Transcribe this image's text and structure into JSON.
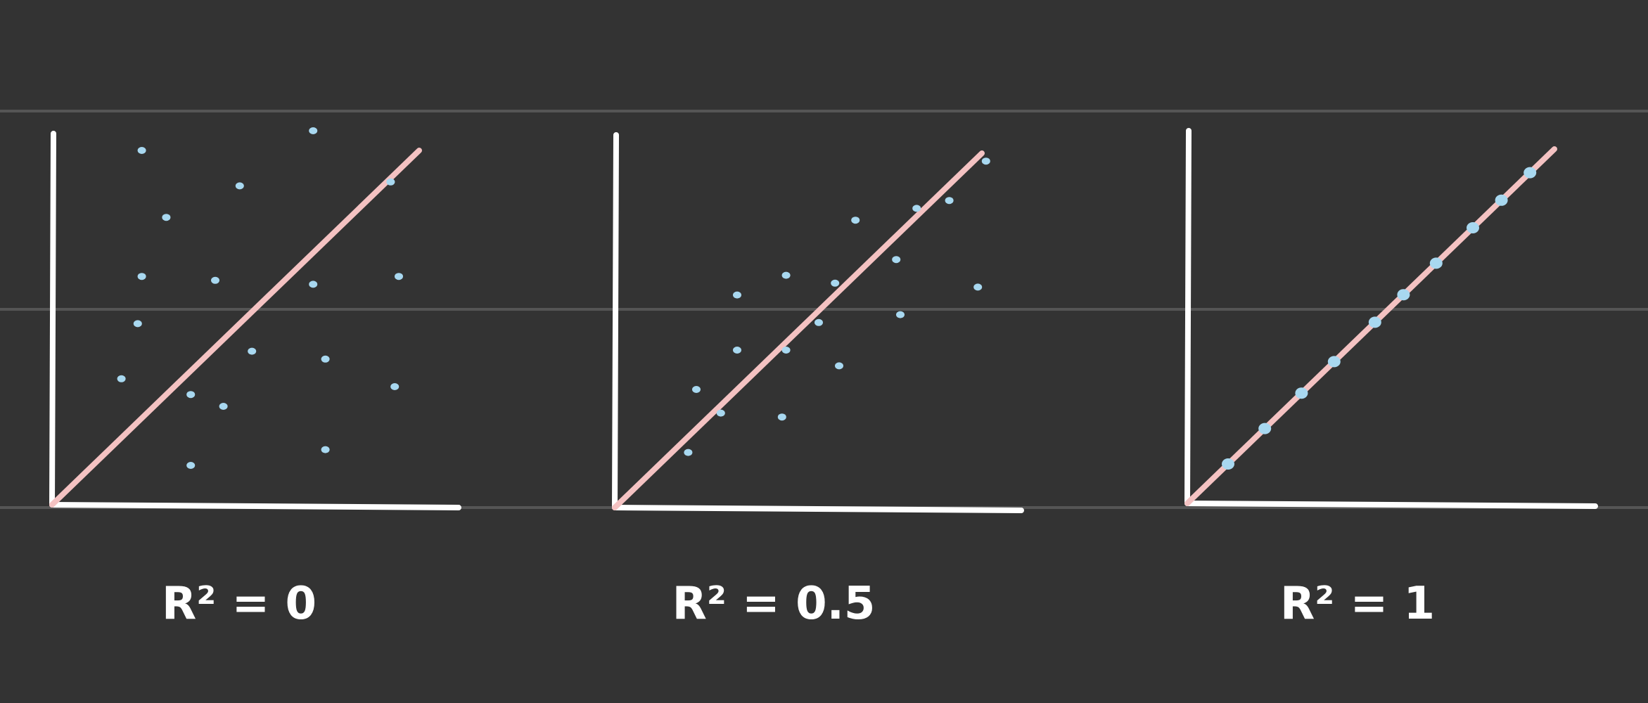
{
  "colors": {
    "background": "#333333",
    "guide_line": "#555555",
    "axis": "#ffffff",
    "fit_line": "#f4c2c2",
    "points": "#a8d8f0"
  },
  "chart_data": [
    {
      "type": "scatter",
      "title": "",
      "caption": "R² = 0",
      "xlim": [
        0,
        100
      ],
      "ylim": [
        0,
        100
      ],
      "grid": false,
      "series": [
        {
          "x": [
            22,
            28,
            22,
            21,
            17,
            34,
            42,
            49,
            40,
            46,
            64,
            64,
            67,
            67,
            83,
            85,
            84,
            34
          ],
          "y": [
            90,
            73,
            58,
            46,
            32,
            28,
            25,
            39,
            57,
            81,
            95,
            56,
            37,
            14,
            82,
            58,
            30,
            10
          ]
        }
      ],
      "fit_line": {
        "x": [
          0,
          90
        ],
        "y": [
          0,
          90
        ]
      }
    },
    {
      "type": "scatter",
      "title": "",
      "caption": "R² = 0.5",
      "xlim": [
        0,
        100
      ],
      "ylim": [
        0,
        100
      ],
      "grid": false,
      "series": [
        {
          "x": [
            18,
            20,
            26,
            30,
            30,
            41,
            42,
            42,
            50,
            55,
            54,
            59,
            70,
            69,
            74,
            82,
            89,
            91
          ],
          "y": [
            14,
            30,
            24,
            40,
            54,
            23,
            40,
            59,
            47,
            36,
            57,
            73,
            49,
            63,
            76,
            78,
            56,
            88
          ]
        }
      ],
      "fit_line": {
        "x": [
          0,
          90
        ],
        "y": [
          0,
          90
        ]
      }
    },
    {
      "type": "scatter",
      "title": "",
      "caption": "R² = 1",
      "xlim": [
        0,
        100
      ],
      "ylim": [
        0,
        100
      ],
      "grid": false,
      "series": [
        {
          "x": [
            10,
            19,
            28,
            36,
            46,
            53,
            61,
            70,
            77,
            84
          ],
          "y": [
            10,
            19,
            28,
            36,
            46,
            53,
            61,
            70,
            77,
            84
          ]
        }
      ],
      "fit_line": {
        "x": [
          0,
          90
        ],
        "y": [
          0,
          90
        ]
      }
    }
  ]
}
